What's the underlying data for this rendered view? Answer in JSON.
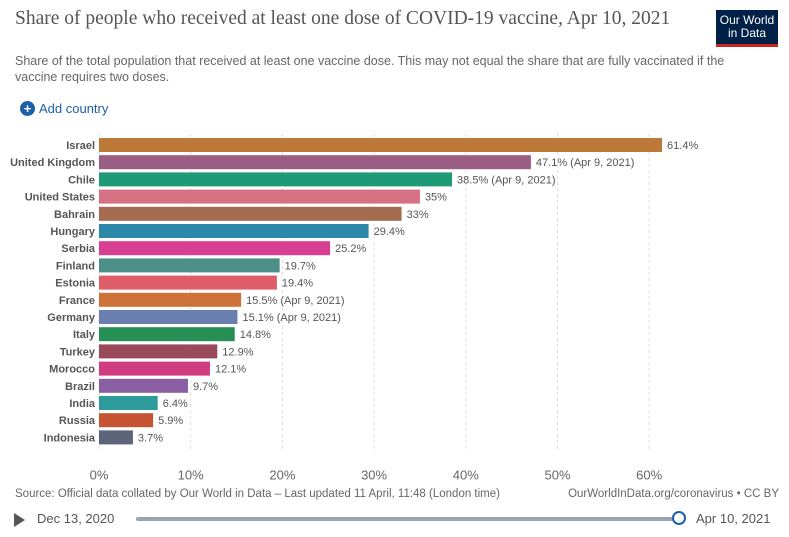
{
  "title": "Share of people who received at least one dose of COVID-19 vaccine, Apr 10, 2021",
  "subtitle": "Share of the total population that received at least one vaccine dose. This may not equal the share that are fully vaccinated if the vaccine requires two doses.",
  "logo": {
    "line1": "Our World",
    "line2": "in Data"
  },
  "add_country": "Add country",
  "footer": {
    "source": "Source: Official data collated by Our World in Data – Last updated 11 April, 11:48 (London time)",
    "credit": "OurWorldInData.org/coronavirus • CC BY"
  },
  "timeline": {
    "start": "Dec 13, 2020",
    "end": "Apr 10, 2021",
    "progress": 1.0
  },
  "chart_data": {
    "type": "bar",
    "orientation": "horizontal",
    "title": "Share of people who received at least one dose of COVID-19 vaccine, Apr 10, 2021",
    "xlim": [
      0,
      65
    ],
    "ticks": [
      0,
      10,
      20,
      30,
      40,
      50,
      60
    ],
    "tick_labels": [
      "0%",
      "10%",
      "20%",
      "30%",
      "40%",
      "50%",
      "60%"
    ],
    "grid": true,
    "categories": [
      "Israel",
      "United Kingdom",
      "Chile",
      "United States",
      "Bahrain",
      "Hungary",
      "Serbia",
      "Finland",
      "Estonia",
      "France",
      "Germany",
      "Italy",
      "Turkey",
      "Morocco",
      "Brazil",
      "India",
      "Russia",
      "Indonesia"
    ],
    "values": [
      61.4,
      47.1,
      38.5,
      35,
      33,
      29.4,
      25.2,
      19.7,
      19.4,
      15.5,
      15.1,
      14.8,
      12.9,
      12.1,
      9.7,
      6.4,
      5.9,
      3.7
    ],
    "value_labels": [
      "61.4%",
      "47.1% (Apr 9, 2021)",
      "38.5% (Apr 9, 2021)",
      "35%",
      "33%",
      "29.4%",
      "25.2%",
      "19.7%",
      "19.4%",
      "15.5% (Apr 9, 2021)",
      "15.1% (Apr 9, 2021)",
      "14.8%",
      "12.9%",
      "12.1%",
      "9.7%",
      "6.4%",
      "5.9%",
      "3.7%"
    ],
    "colors": [
      "#bd7937",
      "#9a5d83",
      "#1f9a77",
      "#d67184",
      "#a46b4e",
      "#2d87a8",
      "#d83f92",
      "#4b8f87",
      "#dd5d6a",
      "#cf723a",
      "#6a7fb0",
      "#268f55",
      "#9b4a5a",
      "#cf3d80",
      "#8a5ea3",
      "#2e9b9b",
      "#c65434",
      "#5b6478"
    ]
  }
}
